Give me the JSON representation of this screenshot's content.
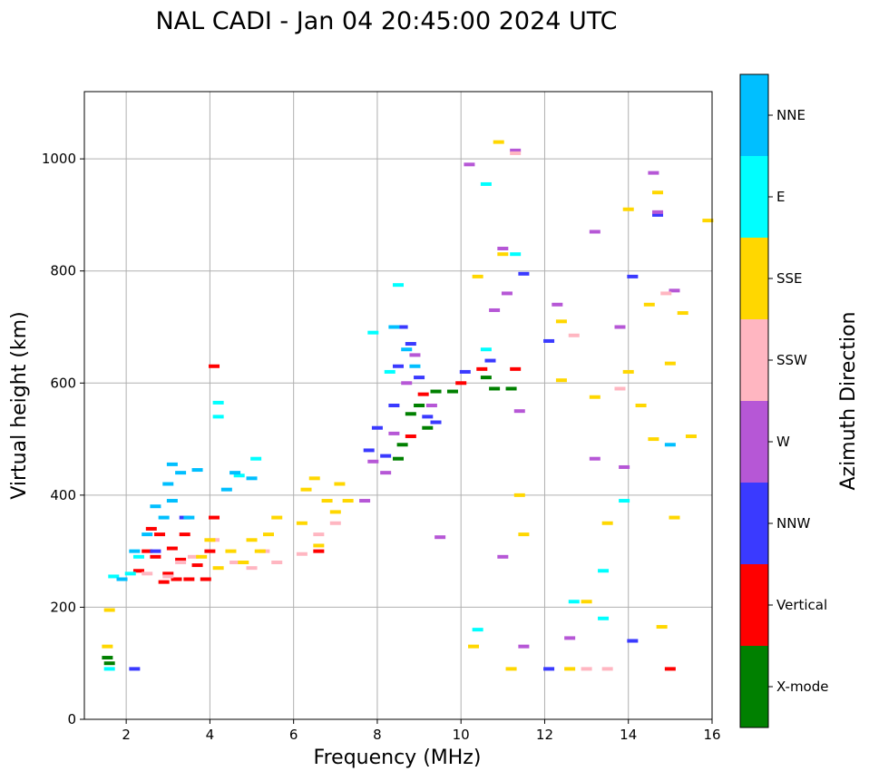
{
  "chart_data": {
    "type": "scatter",
    "title": "NAL CADI - Jan 04 20:45:00 2024 UTC",
    "xlabel": "Frequency (MHz)",
    "ylabel": "Virtual height (km)",
    "xlim": [
      1.0,
      16.0
    ],
    "ylim": [
      0,
      1120
    ],
    "xticks": [
      2,
      4,
      6,
      8,
      10,
      12,
      14,
      16
    ],
    "yticks": [
      0,
      200,
      400,
      600,
      800,
      1000
    ],
    "grid": true,
    "colorbar": {
      "label": "Azimuth Direction",
      "categories": [
        "X-mode",
        "Vertical",
        "NNW",
        "W",
        "SSW",
        "SSE",
        "E",
        "NNE"
      ],
      "colors": [
        "#008000",
        "#ff0000",
        "#3a3aff",
        "#b657d6",
        "#ffb6c1",
        "#ffd700",
        "#00ffff",
        "#00bfff"
      ]
    },
    "series": [
      {
        "name": "X-mode",
        "points": [
          [
            1.55,
            110
          ],
          [
            1.6,
            100
          ],
          [
            8.5,
            465
          ],
          [
            8.6,
            490
          ],
          [
            8.8,
            545
          ],
          [
            9.0,
            560
          ],
          [
            9.2,
            520
          ],
          [
            9.4,
            585
          ],
          [
            9.8,
            585
          ],
          [
            10.6,
            610
          ],
          [
            10.8,
            590
          ],
          [
            11.2,
            590
          ]
        ]
      },
      {
        "name": "Vertical",
        "points": [
          [
            2.3,
            265
          ],
          [
            2.5,
            300
          ],
          [
            2.6,
            340
          ],
          [
            2.7,
            290
          ],
          [
            2.8,
            330
          ],
          [
            2.9,
            245
          ],
          [
            3.0,
            260
          ],
          [
            3.1,
            305
          ],
          [
            3.2,
            250
          ],
          [
            3.3,
            285
          ],
          [
            3.4,
            330
          ],
          [
            3.5,
            250
          ],
          [
            3.7,
            275
          ],
          [
            3.9,
            250
          ],
          [
            4.0,
            300
          ],
          [
            4.1,
            360
          ],
          [
            4.1,
            630
          ],
          [
            6.6,
            300
          ],
          [
            8.8,
            505
          ],
          [
            9.1,
            580
          ],
          [
            10.0,
            600
          ],
          [
            10.5,
            625
          ],
          [
            11.3,
            625
          ],
          [
            15.0,
            90
          ]
        ]
      },
      {
        "name": "NNW",
        "points": [
          [
            7.8,
            480
          ],
          [
            8.0,
            520
          ],
          [
            8.2,
            470
          ],
          [
            8.4,
            560
          ],
          [
            8.5,
            630
          ],
          [
            8.6,
            700
          ],
          [
            8.8,
            670
          ],
          [
            9.0,
            610
          ],
          [
            9.2,
            540
          ],
          [
            9.4,
            530
          ],
          [
            10.1,
            620
          ],
          [
            10.7,
            640
          ],
          [
            11.5,
            795
          ],
          [
            12.1,
            90
          ],
          [
            12.1,
            675
          ],
          [
            14.1,
            790
          ],
          [
            14.1,
            140
          ],
          [
            14.7,
            900
          ],
          [
            2.2,
            90
          ],
          [
            2.7,
            300
          ],
          [
            3.4,
            360
          ]
        ]
      },
      {
        "name": "W",
        "points": [
          [
            7.7,
            390
          ],
          [
            7.9,
            460
          ],
          [
            8.2,
            440
          ],
          [
            8.4,
            510
          ],
          [
            8.7,
            600
          ],
          [
            8.9,
            650
          ],
          [
            9.3,
            560
          ],
          [
            9.5,
            325
          ],
          [
            10.2,
            990
          ],
          [
            11.0,
            840
          ],
          [
            10.8,
            730
          ],
          [
            11.1,
            760
          ],
          [
            11.3,
            1015
          ],
          [
            11.5,
            130
          ],
          [
            11.0,
            290
          ],
          [
            11.4,
            550
          ],
          [
            12.3,
            740
          ],
          [
            12.6,
            145
          ],
          [
            13.2,
            870
          ],
          [
            13.2,
            465
          ],
          [
            13.8,
            700
          ],
          [
            13.9,
            450
          ],
          [
            14.6,
            975
          ],
          [
            14.7,
            905
          ],
          [
            15.1,
            765
          ]
        ]
      },
      {
        "name": "SSW",
        "points": [
          [
            2.5,
            260
          ],
          [
            3.0,
            255
          ],
          [
            3.3,
            280
          ],
          [
            3.6,
            290
          ],
          [
            4.1,
            320
          ],
          [
            4.6,
            280
          ],
          [
            5.0,
            270
          ],
          [
            5.3,
            300
          ],
          [
            5.6,
            280
          ],
          [
            6.2,
            295
          ],
          [
            6.6,
            330
          ],
          [
            7.0,
            350
          ],
          [
            11.3,
            1010
          ],
          [
            12.7,
            685
          ],
          [
            13.0,
            90
          ],
          [
            13.5,
            90
          ],
          [
            13.8,
            590
          ],
          [
            14.9,
            760
          ]
        ]
      },
      {
        "name": "SSE",
        "points": [
          [
            1.55,
            130
          ],
          [
            1.6,
            195
          ],
          [
            3.8,
            290
          ],
          [
            4.0,
            320
          ],
          [
            4.2,
            270
          ],
          [
            4.5,
            300
          ],
          [
            4.8,
            280
          ],
          [
            5.0,
            320
          ],
          [
            5.2,
            300
          ],
          [
            5.4,
            330
          ],
          [
            5.6,
            360
          ],
          [
            6.2,
            350
          ],
          [
            6.3,
            410
          ],
          [
            6.5,
            430
          ],
          [
            6.6,
            310
          ],
          [
            6.8,
            390
          ],
          [
            7.0,
            370
          ],
          [
            7.1,
            420
          ],
          [
            7.3,
            390
          ],
          [
            10.4,
            790
          ],
          [
            10.3,
            130
          ],
          [
            10.9,
            1030
          ],
          [
            11.0,
            830
          ],
          [
            11.2,
            90
          ],
          [
            11.4,
            400
          ],
          [
            11.5,
            330
          ],
          [
            12.4,
            710
          ],
          [
            12.4,
            605
          ],
          [
            12.6,
            90
          ],
          [
            13.0,
            210
          ],
          [
            13.2,
            575
          ],
          [
            13.5,
            350
          ],
          [
            14.0,
            910
          ],
          [
            14.0,
            620
          ],
          [
            14.3,
            560
          ],
          [
            14.5,
            740
          ],
          [
            14.6,
            500
          ],
          [
            14.7,
            940
          ],
          [
            14.8,
            165
          ],
          [
            15.0,
            635
          ],
          [
            15.1,
            360
          ],
          [
            15.3,
            725
          ],
          [
            15.5,
            505
          ],
          [
            15.9,
            890
          ]
        ]
      },
      {
        "name": "E",
        "points": [
          [
            1.6,
            90
          ],
          [
            1.7,
            255
          ],
          [
            2.1,
            260
          ],
          [
            2.3,
            290
          ],
          [
            4.2,
            565
          ],
          [
            4.2,
            540
          ],
          [
            4.7,
            435
          ],
          [
            5.1,
            465
          ],
          [
            7.9,
            690
          ],
          [
            8.5,
            775
          ],
          [
            8.3,
            620
          ],
          [
            10.4,
            160
          ],
          [
            10.6,
            955
          ],
          [
            10.6,
            660
          ],
          [
            11.3,
            830
          ],
          [
            12.7,
            210
          ],
          [
            13.4,
            180
          ],
          [
            13.4,
            265
          ],
          [
            13.9,
            390
          ]
        ]
      },
      {
        "name": "NNE",
        "points": [
          [
            1.9,
            250
          ],
          [
            2.2,
            300
          ],
          [
            2.5,
            330
          ],
          [
            2.7,
            380
          ],
          [
            2.9,
            360
          ],
          [
            3.0,
            420
          ],
          [
            3.1,
            455
          ],
          [
            3.3,
            440
          ],
          [
            3.1,
            390
          ],
          [
            3.5,
            360
          ],
          [
            3.7,
            445
          ],
          [
            4.4,
            410
          ],
          [
            4.6,
            440
          ],
          [
            5.0,
            430
          ],
          [
            8.4,
            700
          ],
          [
            8.7,
            660
          ],
          [
            8.9,
            630
          ],
          [
            15.0,
            490
          ]
        ]
      }
    ]
  }
}
